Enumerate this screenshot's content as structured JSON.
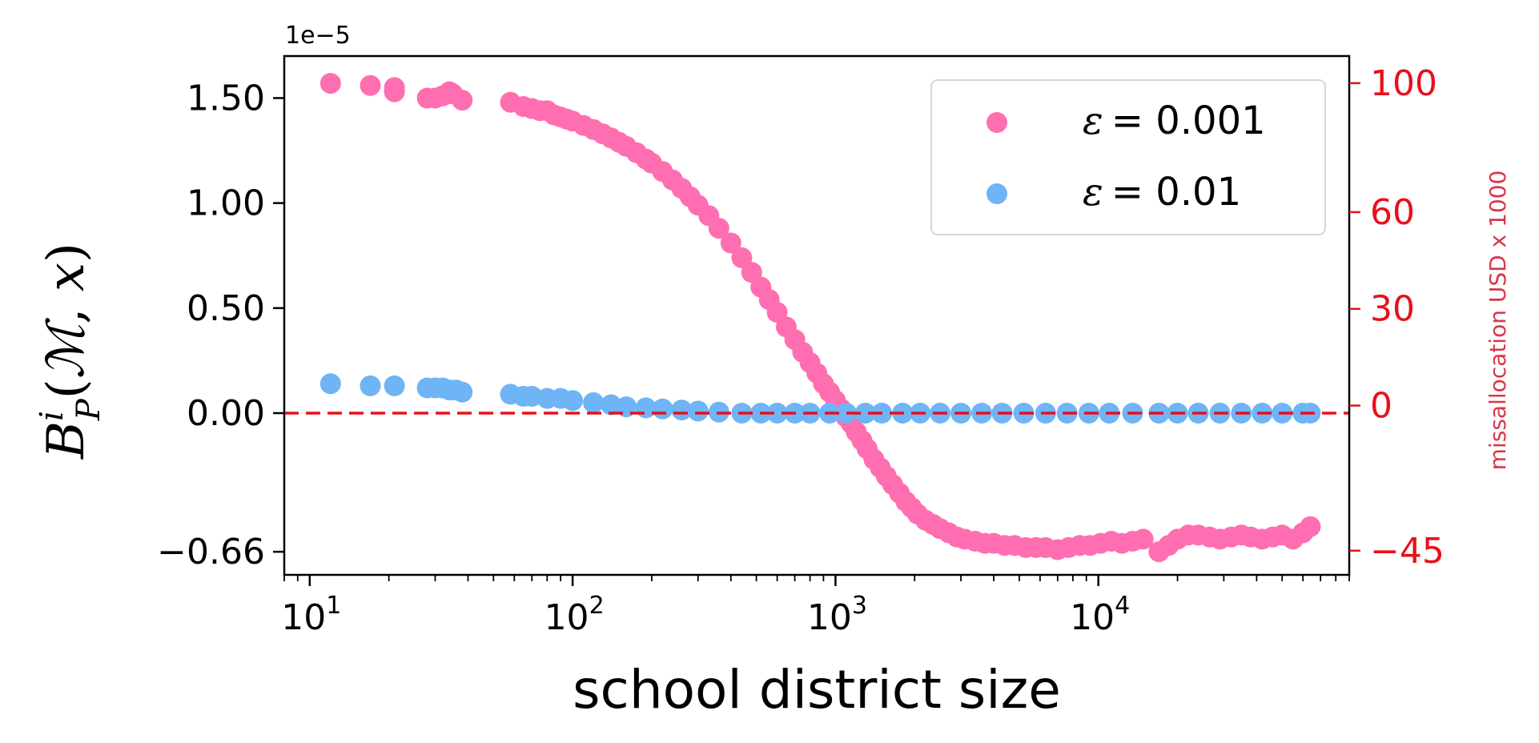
{
  "chart_data": {
    "type": "scatter",
    "title": "",
    "xlabel": "school district size",
    "ylabel": "B_P^i(ℳ, x)",
    "ylabel_right": "missallocation USD x 1000",
    "y_offset_label": "1e−5",
    "x_scale": "log",
    "xlim": [
      8,
      90000
    ],
    "ylim": [
      -0.77,
      1.7
    ],
    "y_right_lim": [
      -52.5,
      108.4
    ],
    "x_ticks": [
      10,
      100,
      1000,
      10000
    ],
    "x_tick_labels": [
      {
        "base": "10",
        "exp": "1"
      },
      {
        "base": "10",
        "exp": "2"
      },
      {
        "base": "10",
        "exp": "3"
      },
      {
        "base": "10",
        "exp": "4"
      }
    ],
    "y_ticks": [
      1.5,
      1.0,
      0.5,
      0.0,
      -0.66
    ],
    "y_tick_labels": [
      "1.50",
      "1.00",
      "0.50",
      "0.00",
      "−0.66"
    ],
    "y_right_ticks": [
      100,
      60,
      30,
      0,
      -45
    ],
    "y_right_tick_labels": [
      "100",
      "60",
      "30",
      "0",
      "−45"
    ],
    "reference_line": {
      "y": 0,
      "style": "dashed",
      "color": "#e8101c"
    },
    "grid": false,
    "legend_position": "top-right",
    "series": [
      {
        "name": "ε = 0.001",
        "name_prefix": "ε",
        "name_value": "= 0.001",
        "color": "#ff6eb0",
        "x": [
          12,
          17,
          21,
          21,
          28,
          30,
          32,
          34,
          35,
          38,
          58,
          65,
          70,
          75,
          80,
          85,
          90,
          95,
          100,
          110,
          120,
          130,
          140,
          150,
          160,
          175,
          190,
          200,
          220,
          240,
          260,
          280,
          300,
          330,
          360,
          400,
          440,
          480,
          520,
          560,
          600,
          650,
          700,
          750,
          800,
          850,
          900,
          950,
          1000,
          1050,
          1100,
          1150,
          1200,
          1260,
          1320,
          1400,
          1480,
          1560,
          1650,
          1750,
          1850,
          1950,
          2050,
          2200,
          2350,
          2500,
          2700,
          2900,
          3100,
          3400,
          3700,
          4000,
          4400,
          4800,
          5300,
          5800,
          6300,
          7000,
          7700,
          8500,
          9300,
          10200,
          11200,
          12300,
          13500,
          14800,
          17000,
          18500,
          20000,
          22000,
          24000,
          26500,
          29000,
          32000,
          35000,
          38000,
          42000,
          46000,
          50000,
          55000,
          60000,
          64000
        ],
        "values": [
          1.57,
          1.56,
          1.55,
          1.53,
          1.5,
          1.5,
          1.51,
          1.53,
          1.52,
          1.49,
          1.48,
          1.46,
          1.45,
          1.44,
          1.44,
          1.42,
          1.41,
          1.4,
          1.39,
          1.37,
          1.35,
          1.33,
          1.31,
          1.29,
          1.27,
          1.24,
          1.21,
          1.19,
          1.15,
          1.11,
          1.07,
          1.03,
          0.99,
          0.94,
          0.88,
          0.81,
          0.74,
          0.67,
          0.6,
          0.54,
          0.48,
          0.41,
          0.35,
          0.29,
          0.24,
          0.19,
          0.14,
          0.1,
          0.06,
          0.02,
          -0.02,
          -0.05,
          -0.09,
          -0.13,
          -0.17,
          -0.22,
          -0.26,
          -0.3,
          -0.34,
          -0.38,
          -0.42,
          -0.45,
          -0.48,
          -0.51,
          -0.53,
          -0.55,
          -0.57,
          -0.59,
          -0.6,
          -0.61,
          -0.62,
          -0.62,
          -0.63,
          -0.63,
          -0.64,
          -0.64,
          -0.64,
          -0.65,
          -0.64,
          -0.63,
          -0.63,
          -0.62,
          -0.61,
          -0.62,
          -0.61,
          -0.6,
          -0.66,
          -0.63,
          -0.6,
          -0.58,
          -0.58,
          -0.59,
          -0.6,
          -0.59,
          -0.58,
          -0.59,
          -0.6,
          -0.59,
          -0.58,
          -0.6,
          -0.57,
          -0.54
        ]
      },
      {
        "name": "ε = 0.01",
        "name_prefix": "ε",
        "name_value": "= 0.01",
        "color": "#6fb4f5",
        "x": [
          12,
          17,
          21,
          28,
          30,
          32,
          34,
          36,
          38,
          58,
          65,
          70,
          80,
          90,
          100,
          120,
          140,
          160,
          190,
          220,
          260,
          300,
          360,
          440,
          520,
          600,
          700,
          800,
          950,
          1100,
          1300,
          1500,
          1800,
          2100,
          2500,
          3000,
          3600,
          4300,
          5200,
          6300,
          7600,
          9200,
          11000,
          13500,
          17000,
          20000,
          24000,
          29000,
          35000,
          42000,
          50000,
          60000,
          64000
        ],
        "values": [
          0.14,
          0.13,
          0.13,
          0.12,
          0.12,
          0.12,
          0.11,
          0.11,
          0.1,
          0.09,
          0.08,
          0.08,
          0.07,
          0.07,
          0.06,
          0.05,
          0.04,
          0.03,
          0.025,
          0.02,
          0.015,
          0.01,
          0.005,
          0.0,
          0.0,
          0.0,
          0.0,
          0.0,
          0.0,
          0.0,
          0.0,
          0.0,
          0.0,
          0.0,
          0.0,
          0.0,
          0.0,
          0.0,
          0.0,
          0.0,
          0.0,
          0.0,
          0.0,
          0.0,
          0.0,
          0.0,
          0.0,
          0.0,
          0.0,
          0.0,
          0.0,
          0.0,
          0.0
        ]
      }
    ],
    "colors": {
      "axis": "#000000",
      "right_axis": "#e8101c",
      "right_label": "#d9364a"
    }
  }
}
